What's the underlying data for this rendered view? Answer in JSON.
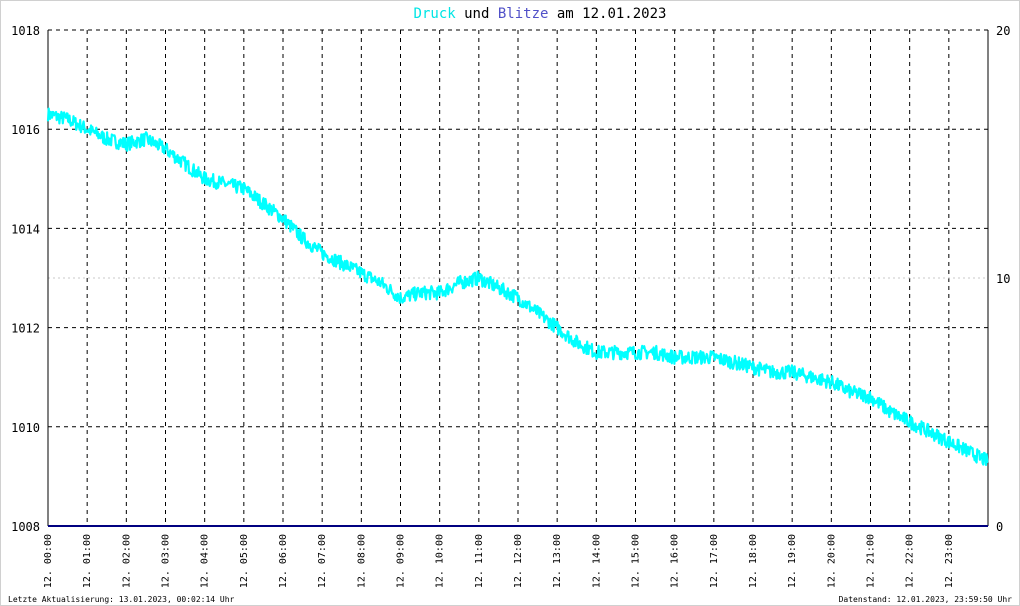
{
  "title": {
    "part1": "Druck",
    "part2": " und ",
    "part3": "Blitze",
    "part4": " am 12.01.2023"
  },
  "footer": {
    "left": "Letzte Aktualisierung: 13.01.2023, 00:02:14 Uhr",
    "right": "Datenstand: 12.01.2023, 23:59:50 Uhr"
  },
  "colors": {
    "pressure": "#00ffff",
    "lightning": "#000080",
    "title_druck": "#00e5e5",
    "title_blitze": "#5050c8"
  },
  "chart_data": {
    "type": "line",
    "title": "Druck und Blitze am 12.01.2023",
    "x_tick_labels": [
      "12. 00:00",
      "12. 01:00",
      "12. 02:00",
      "12. 03:00",
      "12. 04:00",
      "12. 05:00",
      "12. 06:00",
      "12. 07:00",
      "12. 08:00",
      "12. 09:00",
      "12. 10:00",
      "12. 11:00",
      "12. 12:00",
      "12. 13:00",
      "12. 14:00",
      "12. 15:00",
      "12. 16:00",
      "12. 17:00",
      "12. 18:00",
      "12. 19:00",
      "12. 20:00",
      "12. 21:00",
      "12. 22:00",
      "12. 23:00"
    ],
    "xlim_hours": [
      0,
      24
    ],
    "ylim_left": [
      1008,
      1018
    ],
    "y_ticks_left": [
      1008,
      1010,
      1012,
      1014,
      1016,
      1018
    ],
    "ylim_right": [
      0,
      20
    ],
    "y_ticks_right": [
      0,
      10,
      20
    ],
    "grid": true,
    "series": [
      {
        "name": "Druck",
        "axis": "left",
        "x_hours": [
          0,
          0.5,
          1,
          1.5,
          2,
          2.5,
          3,
          3.5,
          4,
          4.5,
          5,
          5.5,
          6,
          6.5,
          7,
          7.5,
          8,
          8.5,
          9,
          9.5,
          10,
          10.5,
          11,
          11.5,
          12,
          12.5,
          13,
          13.5,
          14,
          14.5,
          15,
          15.5,
          16,
          16.5,
          17,
          17.5,
          18,
          18.5,
          19,
          19.5,
          20,
          20.5,
          21,
          21.5,
          22,
          22.5,
          23,
          23.5,
          24
        ],
        "values": [
          1016.3,
          1016.2,
          1016.0,
          1015.8,
          1015.7,
          1015.8,
          1015.6,
          1015.3,
          1015.0,
          1014.9,
          1014.8,
          1014.5,
          1014.2,
          1013.8,
          1013.5,
          1013.3,
          1013.1,
          1012.9,
          1012.6,
          1012.7,
          1012.7,
          1012.9,
          1013.0,
          1012.8,
          1012.6,
          1012.3,
          1012.0,
          1011.7,
          1011.5,
          1011.5,
          1011.5,
          1011.5,
          1011.4,
          1011.4,
          1011.4,
          1011.3,
          1011.2,
          1011.1,
          1011.1,
          1011.0,
          1010.9,
          1010.7,
          1010.6,
          1010.3,
          1010.1,
          1009.9,
          1009.7,
          1009.5,
          1009.3
        ]
      },
      {
        "name": "Blitze",
        "axis": "right",
        "x_hours": [
          0,
          24
        ],
        "values": [
          0,
          0
        ]
      }
    ]
  }
}
